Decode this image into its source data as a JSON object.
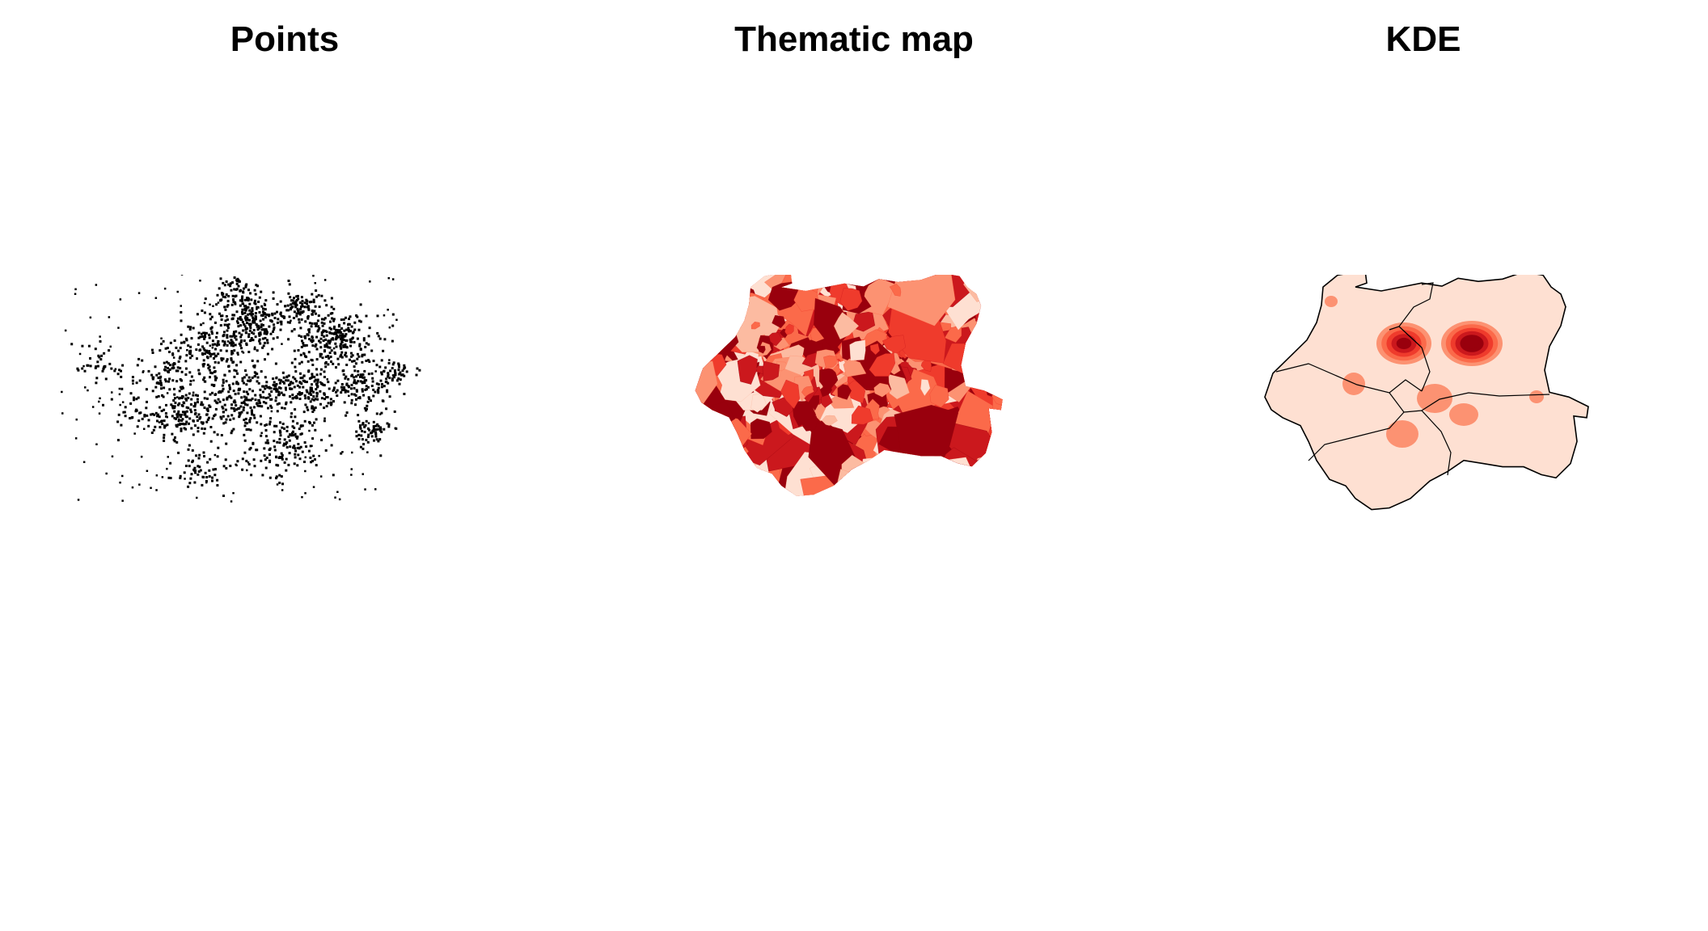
{
  "panels": [
    {
      "title": "Points"
    },
    {
      "title": "Thematic map"
    },
    {
      "title": "KDE"
    }
  ],
  "colors": {
    "points": "#000000",
    "thematic_palette": [
      "#fee0d2",
      "#fcbba1",
      "#fc9272",
      "#fb6a4a",
      "#ef3b2c",
      "#cb181d",
      "#99000d"
    ],
    "kde_palette": [
      "#fee0d2",
      "#fcbba1",
      "#fc9272",
      "#fb6a4a",
      "#ef3b2c",
      "#cb181d",
      "#99000d"
    ],
    "kde_boundary": "#000000"
  }
}
